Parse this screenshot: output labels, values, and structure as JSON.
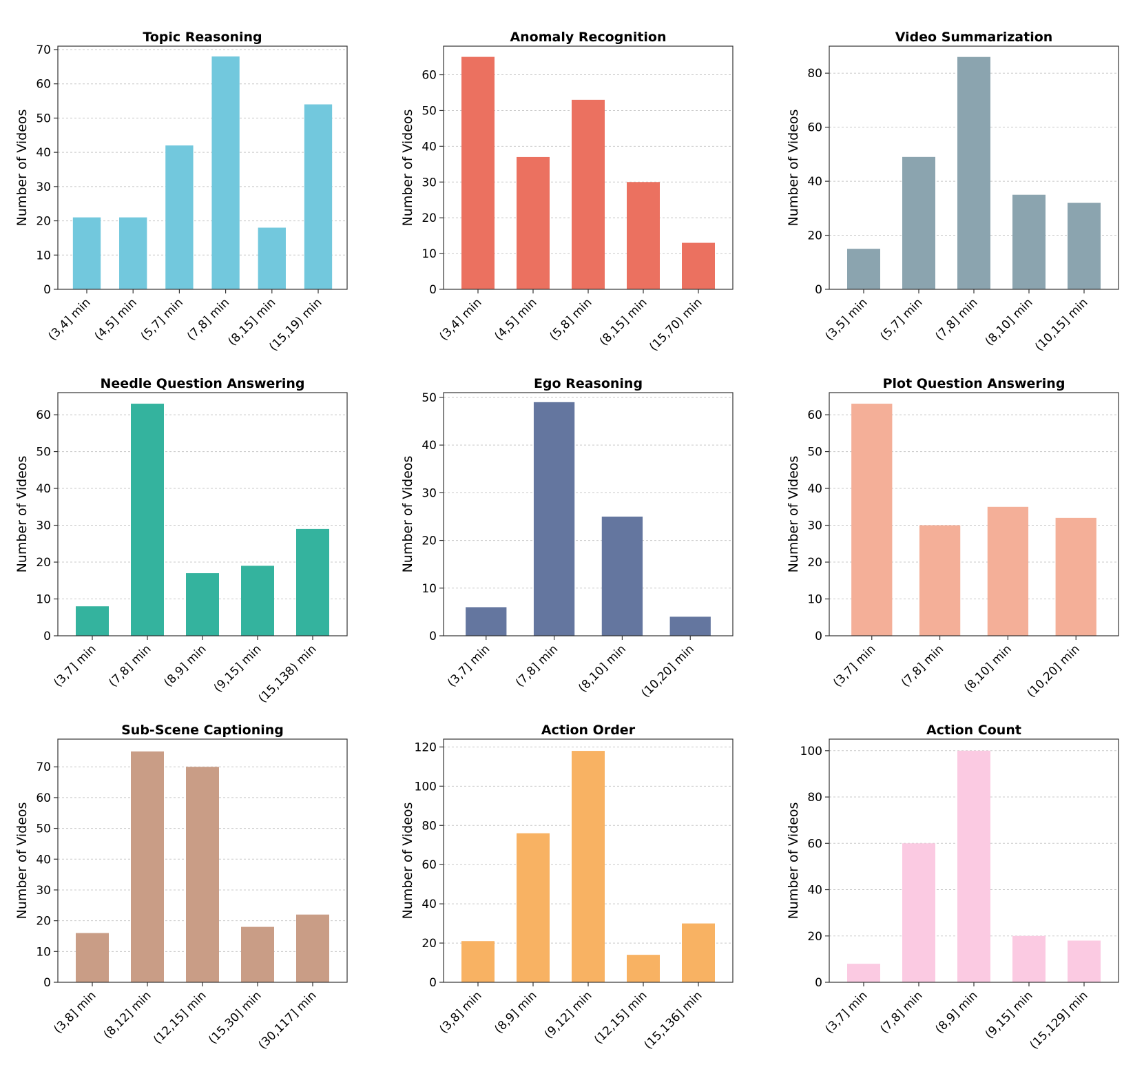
{
  "figure": {
    "ylabel": "Number of Videos"
  },
  "chart_data": [
    {
      "type": "bar",
      "title": "Topic Reasoning",
      "color": "#72C8DD",
      "categories": [
        "(3,4] min",
        "(4,5] min",
        "(5,7] min",
        "(7,8] min",
        "(8,15] min",
        "(15,19) min"
      ],
      "values": [
        21,
        21,
        42,
        68,
        18,
        54
      ],
      "ylabel": "Number of Videos",
      "ylim": [
        0,
        71
      ],
      "yticks": [
        0,
        10,
        20,
        30,
        40,
        50,
        60,
        70
      ],
      "grid": true
    },
    {
      "type": "bar",
      "title": "Anomaly Recognition",
      "color": "#EB7160",
      "categories": [
        "(3,4] min",
        "(4,5] min",
        "(5,8] min",
        "(8,15] min",
        "(15,70) min"
      ],
      "values": [
        65,
        37,
        53,
        30,
        13
      ],
      "ylabel": "Number of Videos",
      "ylim": [
        0,
        68
      ],
      "yticks": [
        0,
        10,
        20,
        30,
        40,
        50,
        60
      ],
      "grid": true
    },
    {
      "type": "bar",
      "title": "Video Summarization",
      "color": "#8BA4AF",
      "categories": [
        "(3,5] min",
        "(5,7] min",
        "(7,8] min",
        "(8,10] min",
        "(10,15] min"
      ],
      "values": [
        15,
        49,
        86,
        35,
        32
      ],
      "ylabel": "Number of Videos",
      "ylim": [
        0,
        90
      ],
      "yticks": [
        0,
        20,
        40,
        60,
        80
      ],
      "grid": true
    },
    {
      "type": "bar",
      "title": "Needle Question Answering",
      "color": "#34B39E",
      "categories": [
        "(3,7] min",
        "(7,8] min",
        "(8,9] min",
        "(9,15] min",
        "(15,138) min"
      ],
      "values": [
        8,
        63,
        17,
        19,
        29
      ],
      "ylabel": "Number of Videos",
      "ylim": [
        0,
        66
      ],
      "yticks": [
        0,
        10,
        20,
        30,
        40,
        50,
        60
      ],
      "grid": true
    },
    {
      "type": "bar",
      "title": "Ego Reasoning",
      "color": "#64769F",
      "categories": [
        "(3,7] min",
        "(7,8] min",
        "(8,10] min",
        "(10,20] min"
      ],
      "values": [
        6,
        49,
        25,
        4
      ],
      "ylabel": "Number of Videos",
      "ylim": [
        0,
        51
      ],
      "yticks": [
        0,
        10,
        20,
        30,
        40,
        50
      ],
      "grid": true
    },
    {
      "type": "bar",
      "title": "Plot Question Answering",
      "color": "#F4AF98",
      "categories": [
        "(3,7] min",
        "(7,8] min",
        "(8,10] min",
        "(10,20] min"
      ],
      "values": [
        63,
        30,
        35,
        32
      ],
      "ylabel": "Number of Videos",
      "ylim": [
        0,
        66
      ],
      "yticks": [
        0,
        10,
        20,
        30,
        40,
        50,
        60
      ],
      "grid": true
    },
    {
      "type": "bar",
      "title": "Sub-Scene Captioning",
      "color": "#C99D86",
      "categories": [
        "(3,8] min",
        "(8,12] min",
        "(12,15] min",
        "(15,30] min",
        "(30,117] min"
      ],
      "values": [
        16,
        75,
        70,
        18,
        22
      ],
      "ylabel": "Number of Videos",
      "ylim": [
        0,
        79
      ],
      "yticks": [
        0,
        10,
        20,
        30,
        40,
        50,
        60,
        70
      ],
      "grid": true
    },
    {
      "type": "bar",
      "title": "Action Order",
      "color": "#F8B263",
      "categories": [
        "(3,8] min",
        "(8,9] min",
        "(9,12] min",
        "(12,15] min",
        "(15,136] min"
      ],
      "values": [
        21,
        76,
        118,
        14,
        30
      ],
      "ylabel": "Number of Videos",
      "ylim": [
        0,
        124
      ],
      "yticks": [
        0,
        20,
        40,
        60,
        80,
        100,
        120
      ],
      "grid": true
    },
    {
      "type": "bar",
      "title": "Action Count",
      "color": "#FBCAE2",
      "categories": [
        "(3,7] min",
        "(7,8] min",
        "(8,9] min",
        "(9,15] min",
        "(15,129] min"
      ],
      "values": [
        8,
        60,
        100,
        20,
        18
      ],
      "ylabel": "Number of Videos",
      "ylim": [
        0,
        105
      ],
      "yticks": [
        0,
        20,
        40,
        60,
        80,
        100
      ],
      "grid": true
    }
  ]
}
